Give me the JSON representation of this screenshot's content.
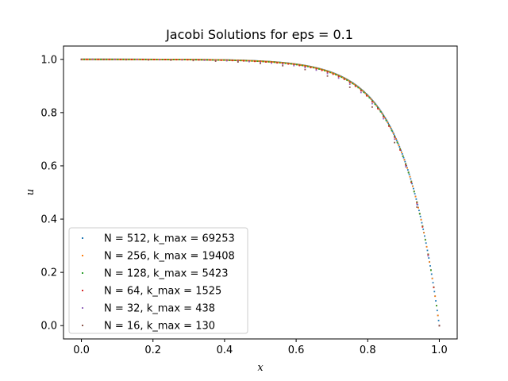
{
  "chart_data": {
    "type": "scatter",
    "title": "Jacobi Solutions for eps = 0.1",
    "xlabel": "x",
    "ylabel": "u",
    "xlim": [
      -0.05,
      1.05
    ],
    "ylim": [
      -0.05,
      1.05
    ],
    "xticks": [
      "0.0",
      "0.2",
      "0.4",
      "0.6",
      "0.8",
      "1.0"
    ],
    "xtick_values": [
      0.0,
      0.2,
      0.4,
      0.6,
      0.8,
      1.0
    ],
    "yticks": [
      "0.0",
      "0.2",
      "0.4",
      "0.6",
      "0.8",
      "1.0"
    ],
    "ytick_values": [
      0.0,
      0.2,
      0.4,
      0.6,
      0.8,
      1.0
    ],
    "grid": false,
    "legend_position": "lower-left",
    "series": [
      {
        "name": "N = 512, k_max = 69253",
        "color": "#1f77b4",
        "n": 512,
        "lag": 0.0
      },
      {
        "name": "N = 256, k_max = 19408",
        "color": "#ff7f0e",
        "n": 256,
        "lag": 0.003
      },
      {
        "name": "N = 128, k_max = 5423",
        "color": "#2ca02c",
        "n": 128,
        "lag": 0.008
      },
      {
        "name": "N = 64, k_max = 1525",
        "color": "#d62728",
        "n": 64,
        "lag": 0.018
      },
      {
        "name": "N = 32, k_max = 438",
        "color": "#9467bd",
        "n": 32,
        "lag": 0.04
      },
      {
        "name": "N = 16, k_max = 130",
        "color": "#8c564b",
        "n": 16,
        "lag": 0.08
      }
    ]
  }
}
